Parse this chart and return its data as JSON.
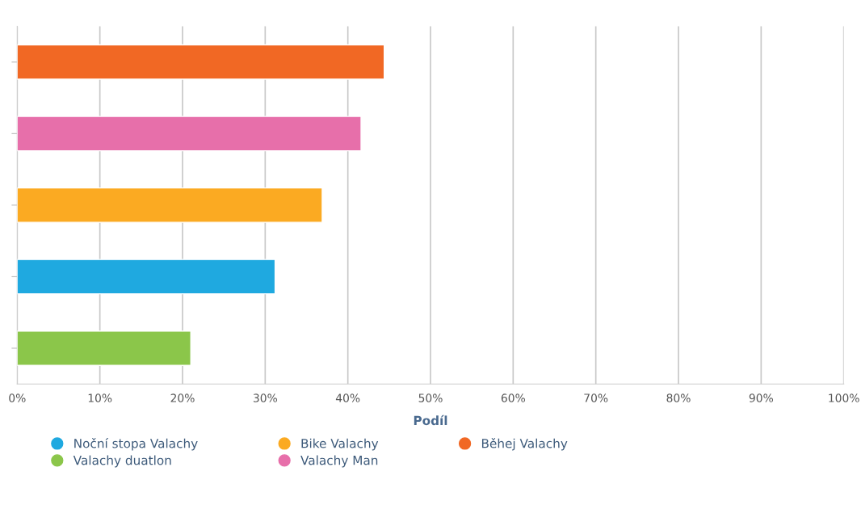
{
  "chart_data": {
    "type": "bar",
    "orientation": "horizontal",
    "xlabel": "Podíl",
    "categories": [
      null,
      null,
      null,
      null,
      null
    ],
    "series": [
      {
        "name": "Noční stopa Valachy",
        "color": "#1fa9e0",
        "values": [
          null,
          null,
          null,
          31.2,
          null
        ]
      },
      {
        "name": "Valachy duatlon",
        "color": "#8bc64a",
        "values": [
          null,
          null,
          null,
          null,
          21.0
        ]
      },
      {
        "name": "Bike Valachy",
        "color": "#fbaa22",
        "values": [
          null,
          null,
          36.9,
          null,
          null
        ]
      },
      {
        "name": "Valachy Man",
        "color": "#e76faa",
        "values": [
          null,
          41.6,
          null,
          null,
          null
        ]
      },
      {
        "name": "Běhej Valachy",
        "color": "#f16824",
        "values": [
          44.4,
          null,
          null,
          null,
          null
        ]
      }
    ],
    "xlim": [
      0,
      100
    ],
    "xticks": [
      {
        "value": 0,
        "label": "0%"
      },
      {
        "value": 10,
        "label": "10%"
      },
      {
        "value": 20,
        "label": "20%"
      },
      {
        "value": 30,
        "label": "30%"
      },
      {
        "value": 40,
        "label": "40%"
      },
      {
        "value": 50,
        "label": "50%"
      },
      {
        "value": 60,
        "label": "60%"
      },
      {
        "value": 70,
        "label": "70%"
      },
      {
        "value": 80,
        "label": "80%"
      },
      {
        "value": 90,
        "label": "90%"
      },
      {
        "value": 100,
        "label": "100%"
      }
    ],
    "grid": "x",
    "legend": "bottom",
    "tick_labels": "x"
  }
}
